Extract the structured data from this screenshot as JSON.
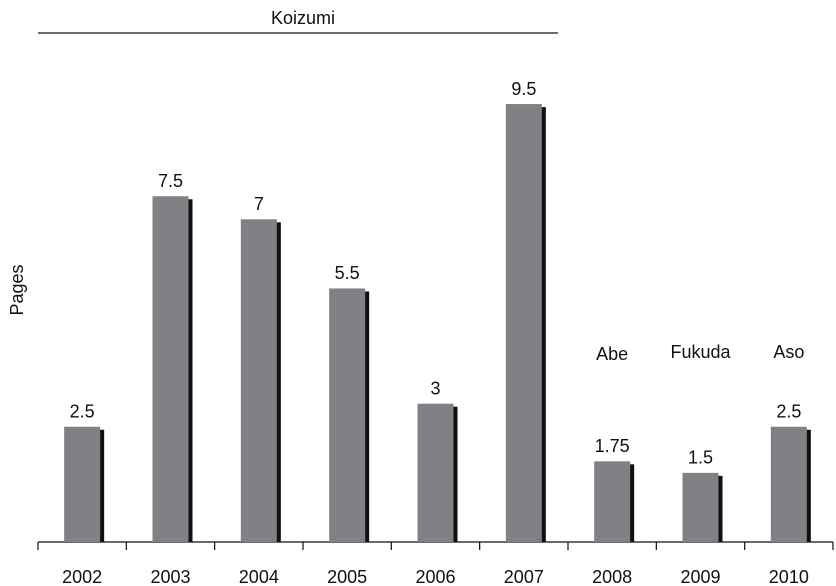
{
  "chart_data": {
    "type": "bar",
    "y_label": "Pages",
    "categories": [
      "2002",
      "2003",
      "2004",
      "2005",
      "2006",
      "2007",
      "2008",
      "2009",
      "2010"
    ],
    "values": [
      2.5,
      7.5,
      7,
      5.5,
      3,
      9.5,
      1.75,
      1.5,
      2.5
    ],
    "color": "#818185",
    "shadow_color": "#111111",
    "ylim": [
      0,
      10
    ],
    "annotations": [
      "Koizumi",
      "Abe",
      "Fukuda",
      "Aso"
    ]
  }
}
